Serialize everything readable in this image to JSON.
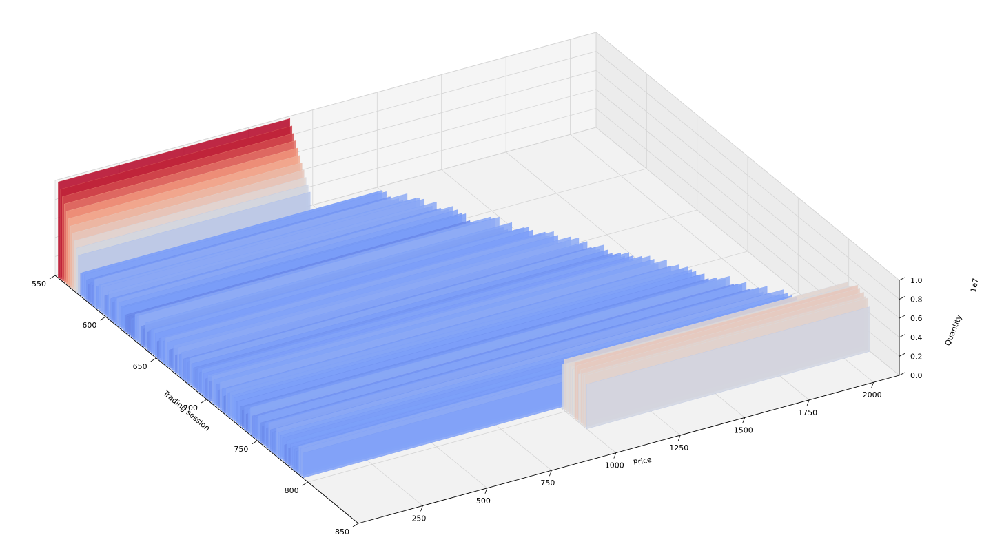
{
  "chart_data": {
    "type": "surface",
    "title": "",
    "colormap": "coolwarm",
    "xlabel": "Price",
    "ylabel": "Trading session",
    "zlabel": "Quantity",
    "z_offset_text": "1e7",
    "x_ticks": [
      "250",
      "500",
      "750",
      "1000",
      "1250",
      "1500",
      "1750",
      "2000"
    ],
    "y_ticks": [
      "550",
      "600",
      "650",
      "700",
      "750",
      "800",
      "850"
    ],
    "z_ticks": [
      "0.0",
      "0.2",
      "0.4",
      "0.6",
      "0.8",
      "1.0"
    ],
    "xlim": [
      0,
      2100
    ],
    "ylim": [
      550,
      850
    ],
    "zlim": [
      0,
      1.0
    ],
    "grid": true,
    "series_description": [
      {
        "sessions": [
          555,
          575
        ],
        "price_range": [
          0,
          900
        ],
        "quantity_scale": 0.95
      },
      {
        "sessions": [
          575,
          820
        ],
        "price_range": [
          0,
          2100
        ],
        "quantity_scale": 0.25
      },
      {
        "sessions": [
          795,
          820
        ],
        "price_range": [
          1000,
          2100
        ],
        "quantity_scale": 0.55
      }
    ]
  }
}
